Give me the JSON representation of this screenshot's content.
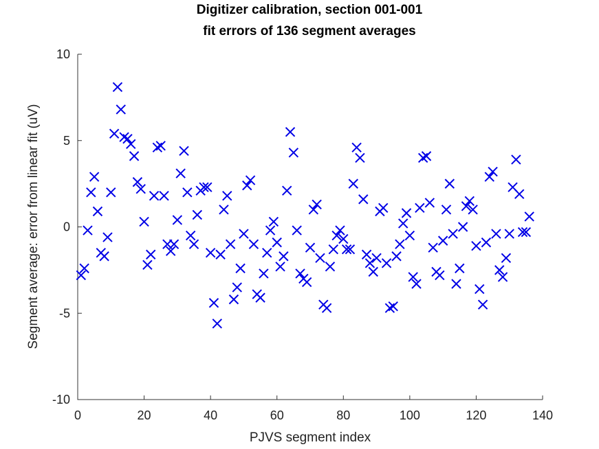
{
  "colors": {
    "marker": "#0000e6",
    "axis": "#333333",
    "text": "#222222",
    "background": "#ffffff"
  },
  "chart_data": {
    "type": "scatter",
    "marker": "x",
    "title": "Digitizer calibration, section 001-001",
    "subtitle": "fit errors of 136 segment averages",
    "xlabel": "PJVS segment index",
    "ylabel": "Segment average: error from linear fit (uV)",
    "xlim": [
      0,
      140
    ],
    "ylim": [
      -10,
      10
    ],
    "xticks": [
      0,
      20,
      40,
      60,
      80,
      100,
      120,
      140
    ],
    "yticks": [
      -10,
      -5,
      0,
      5,
      10
    ],
    "grid": false,
    "legend": "none",
    "x": [
      1,
      2,
      3,
      4,
      5,
      6,
      7,
      8,
      9,
      10,
      11,
      12,
      13,
      14,
      15,
      16,
      17,
      18,
      19,
      20,
      21,
      22,
      23,
      24,
      25,
      26,
      27,
      28,
      29,
      30,
      31,
      32,
      33,
      34,
      35,
      36,
      37,
      38,
      39,
      40,
      41,
      42,
      43,
      44,
      45,
      46,
      47,
      48,
      49,
      50,
      51,
      52,
      53,
      54,
      55,
      56,
      57,
      58,
      59,
      60,
      61,
      62,
      63,
      64,
      65,
      66,
      67,
      68,
      69,
      70,
      71,
      72,
      73,
      74,
      75,
      76,
      77,
      78,
      79,
      80,
      81,
      82,
      83,
      84,
      85,
      86,
      87,
      88,
      89,
      90,
      91,
      92,
      93,
      94,
      95,
      96,
      97,
      98,
      99,
      100,
      101,
      102,
      103,
      104,
      105,
      106,
      107,
      108,
      109,
      110,
      111,
      112,
      113,
      114,
      115,
      116,
      117,
      118,
      119,
      120,
      121,
      122,
      123,
      124,
      125,
      126,
      127,
      128,
      129,
      130,
      131,
      132,
      133,
      134,
      135,
      136
    ],
    "y": [
      -2.8,
      -2.4,
      -0.2,
      2.0,
      2.9,
      0.9,
      -1.5,
      -1.7,
      -0.6,
      2.0,
      5.4,
      8.1,
      6.8,
      5.2,
      5.1,
      4.8,
      4.1,
      2.6,
      2.2,
      0.3,
      -2.2,
      -1.6,
      1.8,
      4.6,
      4.7,
      1.8,
      -1.0,
      -1.4,
      -1.0,
      0.4,
      3.1,
      4.4,
      2.0,
      -0.5,
      -1.0,
      0.7,
      2.1,
      2.3,
      2.3,
      -1.5,
      -4.4,
      -5.6,
      -1.6,
      1.0,
      1.8,
      -1.0,
      -4.2,
      -3.5,
      -2.4,
      -0.4,
      2.4,
      2.7,
      -1.0,
      -3.9,
      -4.1,
      -2.7,
      -1.5,
      -0.2,
      0.3,
      -0.9,
      -2.3,
      -1.7,
      2.1,
      5.5,
      4.3,
      -0.2,
      -2.7,
      -3.0,
      -3.2,
      -1.2,
      1.0,
      1.3,
      -1.8,
      -4.5,
      -4.7,
      -2.3,
      -1.3,
      -0.5,
      -0.2,
      -0.7,
      -1.3,
      -1.3,
      2.5,
      4.6,
      4.0,
      1.6,
      -1.6,
      -2.1,
      -2.6,
      -1.8,
      0.9,
      1.1,
      -2.1,
      -4.7,
      -4.6,
      -1.7,
      -1.0,
      0.2,
      0.8,
      -0.5,
      -2.9,
      -3.3,
      1.1,
      4.0,
      4.1,
      1.4,
      -1.2,
      -2.6,
      -2.8,
      -0.8,
      1.0,
      2.5,
      -0.4,
      -3.3,
      -2.4,
      0.0,
      1.2,
      1.5,
      1.0,
      -1.1,
      -3.6,
      -4.5,
      -0.9,
      2.9,
      3.2,
      -0.4,
      -2.5,
      -2.9,
      -1.8,
      -0.4,
      2.3,
      3.9,
      1.9,
      -0.3,
      -0.3,
      0.6
    ]
  }
}
